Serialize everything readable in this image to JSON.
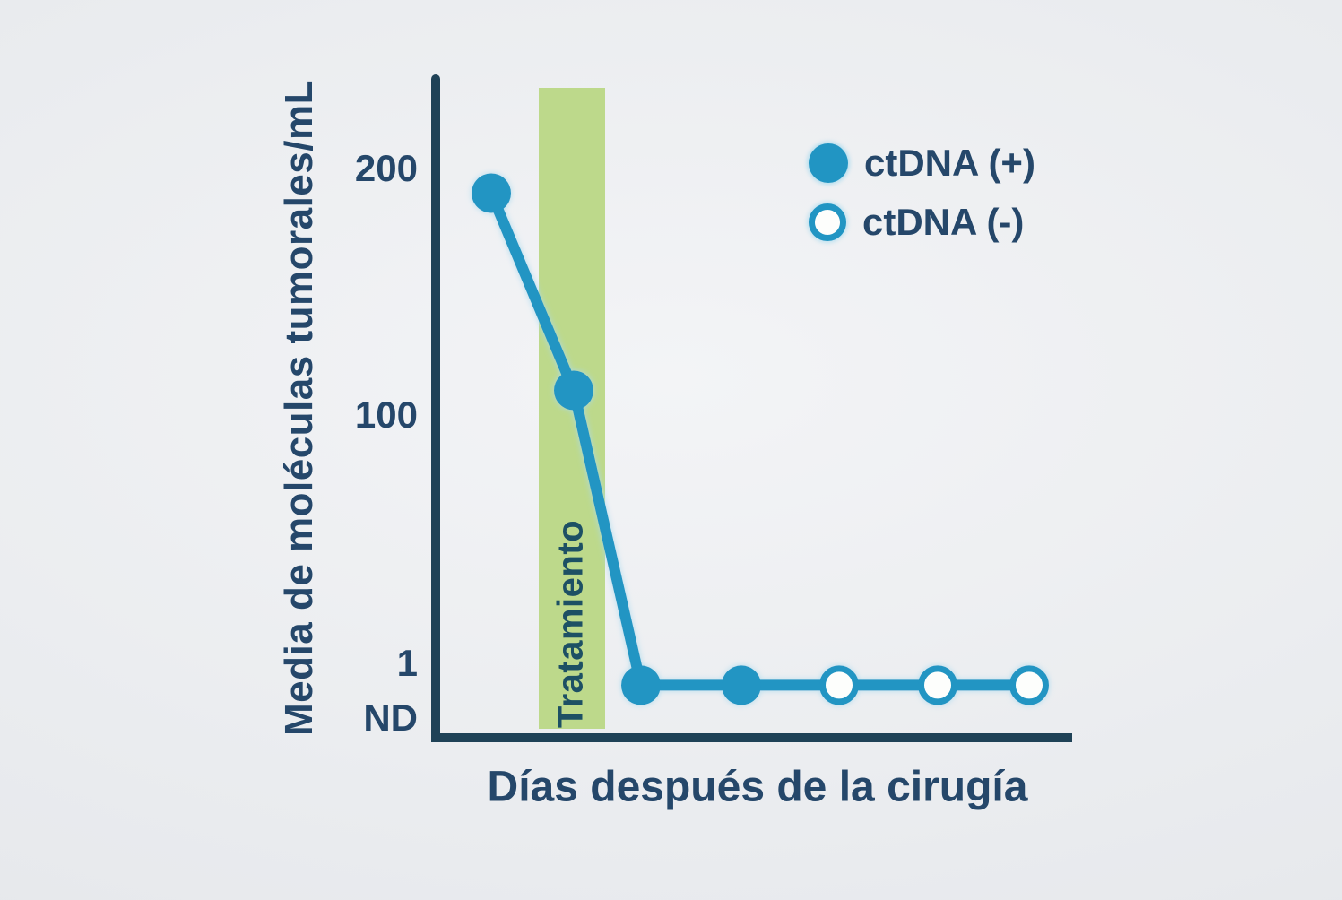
{
  "colors": {
    "background": "#e9ebee",
    "axis_line": "#1f4257",
    "label_text": "#25476a",
    "series_teal": "#2195c3",
    "marker_halo": "#a8daef",
    "open_marker_fill": "#fdfefc",
    "treatment_band": "#bdd98b",
    "treatment_text": "#1d5064"
  },
  "chart_data": {
    "type": "line",
    "title": "",
    "ylabel": "Media de moléculas tumorales/mL",
    "xlabel": "Días después de la cirugía",
    "y_scale": "stylized log-like, ND = not detected (no numeric x ticks shown)",
    "y_ticks": [
      {
        "label": "200",
        "value": 200
      },
      {
        "label": "100",
        "value": 100
      },
      {
        "label": "1",
        "value": 1
      },
      {
        "label": "ND",
        "value": 0.5
      }
    ],
    "band": {
      "label": "Tratamiento"
    },
    "series": [
      {
        "name": "ctDNA",
        "points": [
          {
            "y": 190,
            "ctdna": "positive"
          },
          {
            "y": 110,
            "ctdna": "positive"
          },
          {
            "y": 0.8,
            "ctdna": "positive"
          },
          {
            "y": 0.8,
            "ctdna": "positive"
          },
          {
            "y": 0.8,
            "ctdna": "negative"
          },
          {
            "y": 0.8,
            "ctdna": "negative"
          },
          {
            "y": 0.8,
            "ctdna": "negative"
          }
        ]
      }
    ],
    "legend": [
      {
        "label": "ctDNA (+)",
        "marker": "filled-circle"
      },
      {
        "label": "ctDNA (-)",
        "marker": "open-circle"
      }
    ],
    "legend_position": "upper right"
  }
}
